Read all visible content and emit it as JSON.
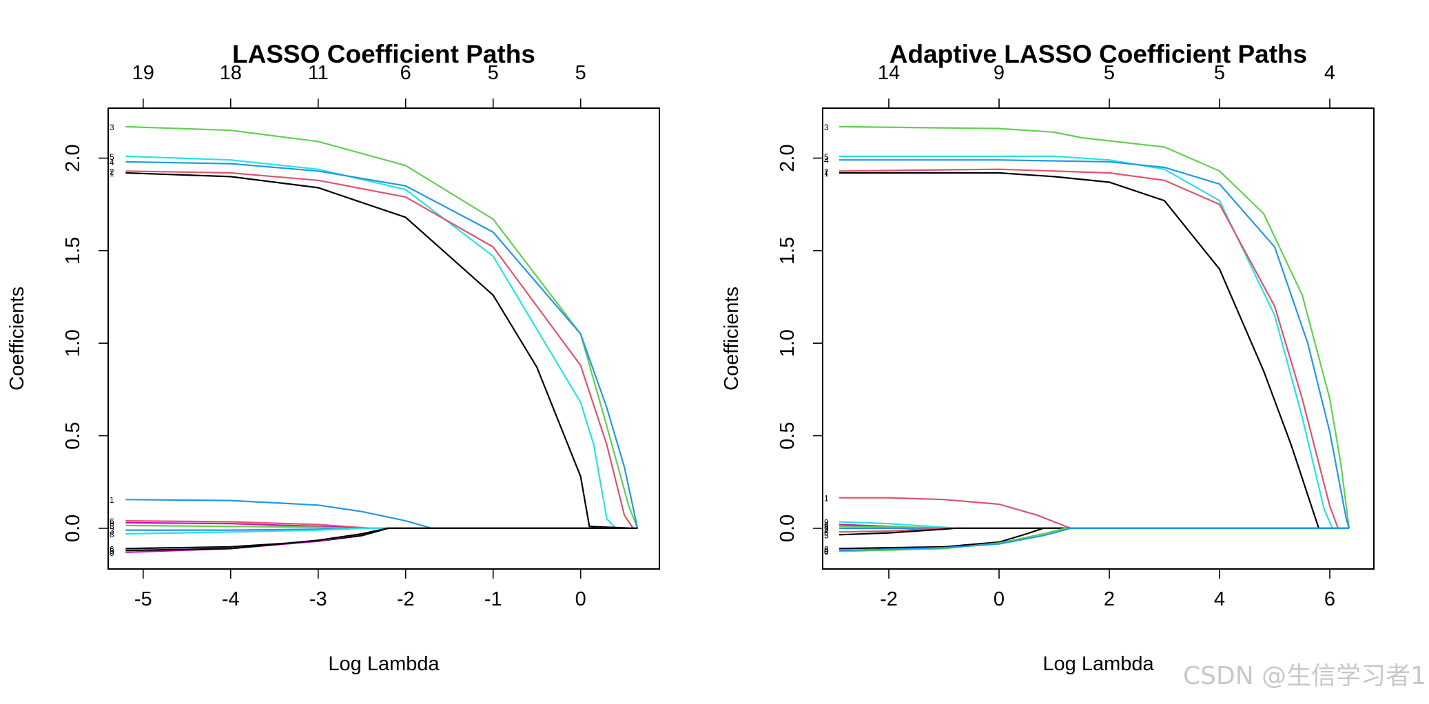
{
  "watermark": "CSDN @生信学习者1",
  "colors": {
    "1": "#000000",
    "2": "#DF536B",
    "3": "#61D04F",
    "4": "#2297E6",
    "5": "#28E2E5",
    "6": "#CD0BBC"
  },
  "chart_data": [
    {
      "type": "line",
      "title": "LASSO Coefficient Paths",
      "xlabel": "Log Lambda",
      "ylabel": "Coefficients",
      "xlim": [
        -5.4,
        0.9
      ],
      "ylim": [
        -0.22,
        2.27
      ],
      "xticks": [
        "-5",
        "-4",
        "-3",
        "-2",
        "-1",
        "0"
      ],
      "yticks": [
        "0.0",
        "0.5",
        "1.0",
        "1.5",
        "2.0"
      ],
      "top_axis": {
        "positions": [
          -5,
          -4,
          -3,
          -2,
          -1,
          0
        ],
        "labels": [
          "19",
          "18",
          "11",
          "6",
          "5",
          "5"
        ]
      },
      "series": [
        {
          "label": "3",
          "color": "#61D04F",
          "points": [
            [
              -5.2,
              2.17
            ],
            [
              -4,
              2.15
            ],
            [
              -3,
              2.09
            ],
            [
              -2,
              1.96
            ],
            [
              -1,
              1.67
            ],
            [
              0,
              1.05
            ],
            [
              0.3,
              0.55
            ],
            [
              0.55,
              0.12
            ],
            [
              0.65,
              0
            ]
          ]
        },
        {
          "label": "5",
          "color": "#28E2E5",
          "points": [
            [
              -5.2,
              2.01
            ],
            [
              -4,
              1.99
            ],
            [
              -3,
              1.94
            ],
            [
              -2,
              1.83
            ],
            [
              -1,
              1.47
            ],
            [
              0,
              0.68
            ],
            [
              0.15,
              0.45
            ],
            [
              0.3,
              0.05
            ],
            [
              0.4,
              0
            ]
          ]
        },
        {
          "label": "4",
          "color": "#2297E6",
          "points": [
            [
              -5.2,
              1.98
            ],
            [
              -4,
              1.97
            ],
            [
              -3,
              1.93
            ],
            [
              -2,
              1.85
            ],
            [
              -1,
              1.6
            ],
            [
              0,
              1.05
            ],
            [
              0.3,
              0.65
            ],
            [
              0.5,
              0.33
            ],
            [
              0.65,
              0
            ]
          ]
        },
        {
          "label": "2",
          "color": "#DF536B",
          "points": [
            [
              -5.2,
              1.93
            ],
            [
              -4,
              1.92
            ],
            [
              -3,
              1.88
            ],
            [
              -2,
              1.79
            ],
            [
              -1,
              1.52
            ],
            [
              0,
              0.88
            ],
            [
              0.3,
              0.45
            ],
            [
              0.5,
              0.07
            ],
            [
              0.6,
              0
            ]
          ]
        },
        {
          "label": "1",
          "color": "#000000",
          "points": [
            [
              -5.2,
              1.92
            ],
            [
              -4,
              1.9
            ],
            [
              -3,
              1.84
            ],
            [
              -2,
              1.68
            ],
            [
              -1,
              1.26
            ],
            [
              -0.5,
              0.87
            ],
            [
              0,
              0.28
            ],
            [
              0.1,
              0.01
            ],
            [
              0.6,
              0
            ],
            [
              0.65,
              0
            ]
          ]
        },
        {
          "label": "1",
          "color": "#2297E6",
          "points": [
            [
              -5.2,
              0.155
            ],
            [
              -4,
              0.15
            ],
            [
              -3,
              0.125
            ],
            [
              -2.5,
              0.09
            ],
            [
              -2,
              0.04
            ],
            [
              -1.7,
              0
            ],
            [
              0.65,
              0
            ]
          ]
        },
        {
          "label": "6",
          "color": "#DF536B",
          "points": [
            [
              -5.2,
              0.04
            ],
            [
              -4,
              0.035
            ],
            [
              -3,
              0.02
            ],
            [
              -2.4,
              0
            ],
            [
              0.65,
              0
            ]
          ]
        },
        {
          "label": "6",
          "color": "#CD0BBC",
          "points": [
            [
              -5.2,
              0.03
            ],
            [
              -4,
              0.025
            ],
            [
              -3,
              0.01
            ],
            [
              -2.5,
              0
            ],
            [
              0.65,
              0
            ]
          ]
        },
        {
          "label": "8",
          "color": "#61D04F",
          "points": [
            [
              -5.2,
              0.015
            ],
            [
              -4,
              0.01
            ],
            [
              -3,
              0.005
            ],
            [
              -2.6,
              0
            ],
            [
              0.65,
              0
            ]
          ]
        },
        {
          "label": "3",
          "color": "#2297E6",
          "points": [
            [
              -5.2,
              -0.01
            ],
            [
              -4,
              -0.01
            ],
            [
              -3,
              -0.005
            ],
            [
              -2.6,
              0
            ],
            [
              0.65,
              0
            ]
          ]
        },
        {
          "label": "8",
          "color": "#28E2E5",
          "points": [
            [
              -5.2,
              -0.03
            ],
            [
              -4,
              -0.02
            ],
            [
              -3,
              -0.01
            ],
            [
              -2.5,
              0
            ],
            [
              0.65,
              0
            ]
          ]
        },
        {
          "label": "6",
          "color": "#000000",
          "points": [
            [
              -5.2,
              -0.11
            ],
            [
              -4,
              -0.1
            ],
            [
              -3,
              -0.07
            ],
            [
              -2.5,
              -0.04
            ],
            [
              -2.2,
              0
            ],
            [
              0.65,
              0
            ]
          ]
        },
        {
          "label": "0",
          "color": "#CD0BBC",
          "points": [
            [
              -5.2,
              -0.13
            ],
            [
              -4,
              -0.11
            ],
            [
              -3,
              -0.07
            ],
            [
              -2.5,
              -0.03
            ],
            [
              -2.2,
              0
            ],
            [
              0.65,
              0
            ]
          ]
        },
        {
          "label": "9",
          "color": "#000000",
          "points": [
            [
              -5.2,
              -0.12
            ],
            [
              -4,
              -0.11
            ],
            [
              -3,
              -0.065
            ],
            [
              -2.5,
              -0.03
            ],
            [
              -2.2,
              0
            ],
            [
              0.65,
              0
            ]
          ]
        }
      ]
    },
    {
      "type": "line",
      "title": "Adaptive LASSO Coefficient Paths",
      "xlabel": "Log Lambda",
      "ylabel": "Coefficients",
      "xlim": [
        -3.2,
        6.8
      ],
      "ylim": [
        -0.22,
        2.27
      ],
      "xticks": [
        "-2",
        "0",
        "2",
        "4",
        "6"
      ],
      "yticks": [
        "0.0",
        "0.5",
        "1.0",
        "1.5",
        "2.0"
      ],
      "top_axis": {
        "positions": [
          -2,
          0,
          2,
          4,
          6
        ],
        "labels": [
          "14",
          "9",
          "5",
          "5",
          "4"
        ]
      },
      "series": [
        {
          "label": "3",
          "color": "#61D04F",
          "points": [
            [
              -2.9,
              2.17
            ],
            [
              0,
              2.16
            ],
            [
              1,
              2.14
            ],
            [
              1.5,
              2.11
            ],
            [
              3,
              2.06
            ],
            [
              4,
              1.93
            ],
            [
              4.8,
              1.7
            ],
            [
              5.5,
              1.26
            ],
            [
              6,
              0.7
            ],
            [
              6.2,
              0.35
            ],
            [
              6.35,
              0
            ]
          ]
        },
        {
          "label": "5",
          "color": "#28E2E5",
          "points": [
            [
              -2.9,
              2.01
            ],
            [
              0,
              2.01
            ],
            [
              1,
              2.01
            ],
            [
              2,
              1.99
            ],
            [
              3,
              1.94
            ],
            [
              4,
              1.77
            ],
            [
              5,
              1.15
            ],
            [
              5.5,
              0.6
            ],
            [
              5.9,
              0.1
            ],
            [
              6.05,
              0
            ]
          ]
        },
        {
          "label": "4",
          "color": "#2297E6",
          "points": [
            [
              -2.9,
              1.99
            ],
            [
              0,
              1.99
            ],
            [
              2,
              1.98
            ],
            [
              3,
              1.95
            ],
            [
              4,
              1.86
            ],
            [
              5,
              1.52
            ],
            [
              5.6,
              1.0
            ],
            [
              6,
              0.52
            ],
            [
              6.3,
              0.05
            ],
            [
              6.35,
              0
            ]
          ]
        },
        {
          "label": "2",
          "color": "#DF536B",
          "points": [
            [
              -2.9,
              1.93
            ],
            [
              0,
              1.94
            ],
            [
              2,
              1.92
            ],
            [
              3,
              1.88
            ],
            [
              4,
              1.75
            ],
            [
              5,
              1.2
            ],
            [
              5.5,
              0.7
            ],
            [
              6,
              0.12
            ],
            [
              6.15,
              0
            ]
          ]
        },
        {
          "label": "1",
          "color": "#000000",
          "points": [
            [
              -2.9,
              1.92
            ],
            [
              0,
              1.92
            ],
            [
              1,
              1.9
            ],
            [
              2,
              1.87
            ],
            [
              3,
              1.77
            ],
            [
              4,
              1.4
            ],
            [
              4.8,
              0.85
            ],
            [
              5.3,
              0.45
            ],
            [
              5.8,
              0
            ],
            [
              6.35,
              0
            ]
          ]
        },
        {
          "label": "1",
          "color": "#DF536B",
          "points": [
            [
              -2.9,
              0.165
            ],
            [
              -2,
              0.165
            ],
            [
              -1,
              0.155
            ],
            [
              0,
              0.13
            ],
            [
              0.7,
              0.07
            ],
            [
              1.3,
              0
            ],
            [
              6.35,
              0
            ]
          ]
        },
        {
          "label": "9",
          "color": "#28E2E5",
          "points": [
            [
              -2.9,
              0.035
            ],
            [
              -2,
              0.025
            ],
            [
              -1,
              0.005
            ],
            [
              -0.8,
              0
            ],
            [
              6.35,
              0
            ]
          ]
        },
        {
          "label": "6",
          "color": "#CD0BBC",
          "points": [
            [
              -2.9,
              0.02
            ],
            [
              -2,
              0.01
            ],
            [
              -1.2,
              0
            ],
            [
              6.35,
              0
            ]
          ]
        },
        {
          "label": "8",
          "color": "#61D04F",
          "points": [
            [
              -2.9,
              0.01
            ],
            [
              -1.5,
              0.005
            ],
            [
              -1,
              0
            ],
            [
              6.35,
              0
            ]
          ]
        },
        {
          "label": "3",
          "color": "#2297E6",
          "points": [
            [
              -2.9,
              0.0
            ],
            [
              6.35,
              0
            ]
          ]
        },
        {
          "label": "6",
          "color": "#DF536B",
          "points": [
            [
              -2.9,
              -0.02
            ],
            [
              -2,
              -0.015
            ],
            [
              -1,
              0
            ],
            [
              6.35,
              0
            ]
          ]
        },
        {
          "label": "5",
          "color": "#000000",
          "points": [
            [
              -2.9,
              -0.035
            ],
            [
              -2,
              -0.025
            ],
            [
              -1,
              -0.005
            ],
            [
              -0.8,
              0
            ],
            [
              6.35,
              0
            ]
          ]
        },
        {
          "label": "8",
          "color": "#000000",
          "points": [
            [
              -2.9,
              -0.11
            ],
            [
              -1,
              -0.1
            ],
            [
              0,
              -0.075
            ],
            [
              0.5,
              -0.03
            ],
            [
              0.8,
              0
            ],
            [
              6.35,
              0
            ]
          ]
        },
        {
          "label": "0",
          "color": "#61D04F",
          "points": [
            [
              -2.9,
              -0.125
            ],
            [
              -1,
              -0.11
            ],
            [
              0,
              -0.08
            ],
            [
              0.8,
              -0.03
            ],
            [
              1.2,
              0
            ],
            [
              6.35,
              0
            ]
          ]
        },
        {
          "label": "9",
          "color": "#2297E6",
          "points": [
            [
              -2.9,
              -0.12
            ],
            [
              -1,
              -0.105
            ],
            [
              0,
              -0.085
            ],
            [
              0.8,
              -0.04
            ],
            [
              1.3,
              0
            ],
            [
              6.35,
              0
            ]
          ]
        }
      ]
    }
  ]
}
